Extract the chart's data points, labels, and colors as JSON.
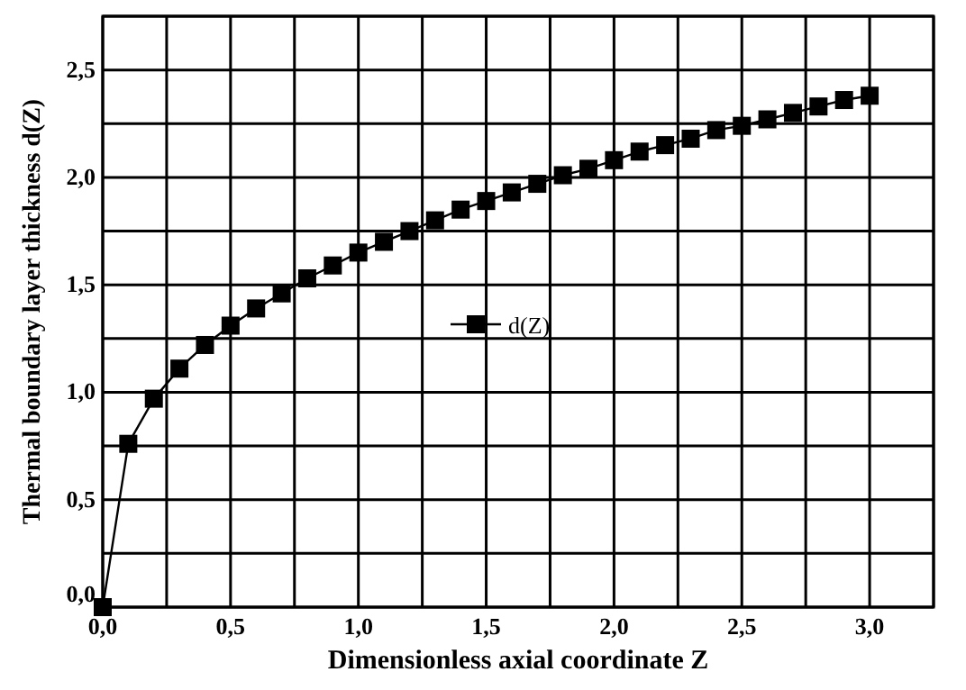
{
  "chart_data": {
    "type": "line",
    "xlabel": "Dimensionless axial coordinate Z",
    "ylabel": "Thermal boundary layer thickness d(Z)",
    "x": [
      0,
      0.1,
      0.2,
      0.3,
      0.4,
      0.5,
      0.6,
      0.7,
      0.8,
      0.9,
      1.0,
      1.1,
      1.2,
      1.3,
      1.4,
      1.5,
      1.6,
      1.7,
      1.8,
      1.9,
      2.0,
      2.1,
      2.2,
      2.3,
      2.4,
      2.5,
      2.6,
      2.7,
      2.8,
      2.9,
      3.0
    ],
    "series": [
      {
        "name": "d(Z)",
        "color": "#000000",
        "values": [
          0,
          0.76,
          0.97,
          1.11,
          1.22,
          1.31,
          1.39,
          1.46,
          1.53,
          1.59,
          1.65,
          1.7,
          1.75,
          1.8,
          1.85,
          1.89,
          1.93,
          1.97,
          2.01,
          2.04,
          2.08,
          2.12,
          2.15,
          2.18,
          2.22,
          2.24,
          2.27,
          2.3,
          2.33,
          2.36,
          2.38
        ]
      }
    ],
    "xlim": [
      0,
      3.25
    ],
    "ylim": [
      0,
      2.75
    ],
    "xticks": [
      {
        "value": 0,
        "label": "0,0"
      },
      {
        "value": 0.25,
        "label": null
      },
      {
        "value": 0.5,
        "label": "0,5"
      },
      {
        "value": 0.75,
        "label": null
      },
      {
        "value": 1,
        "label": "1,0"
      },
      {
        "value": 1.25,
        "label": null
      },
      {
        "value": 1.5,
        "label": "1,5"
      },
      {
        "value": 1.75,
        "label": null
      },
      {
        "value": 2,
        "label": "2,0"
      },
      {
        "value": 2.25,
        "label": null
      },
      {
        "value": 2.5,
        "label": "2,5"
      },
      {
        "value": 2.75,
        "label": null
      },
      {
        "value": 3,
        "label": "3,0"
      },
      {
        "value": 3.25,
        "label": null
      }
    ],
    "yticks": [
      {
        "value": 0,
        "label": "0,0"
      },
      {
        "value": 0.25,
        "label": null
      },
      {
        "value": 0.5,
        "label": "0,5"
      },
      {
        "value": 0.75,
        "label": null
      },
      {
        "value": 1,
        "label": "1,0"
      },
      {
        "value": 1.25,
        "label": null
      },
      {
        "value": 1.5,
        "label": "1,5"
      },
      {
        "value": 1.75,
        "label": null
      },
      {
        "value": 2,
        "label": "2,0"
      },
      {
        "value": 2.25,
        "label": null
      },
      {
        "value": 2.5,
        "label": "2,5"
      },
      {
        "value": 2.75,
        "label": null
      }
    ],
    "grid": true,
    "legend": "center",
    "marker": "square",
    "line_style": "solid"
  }
}
